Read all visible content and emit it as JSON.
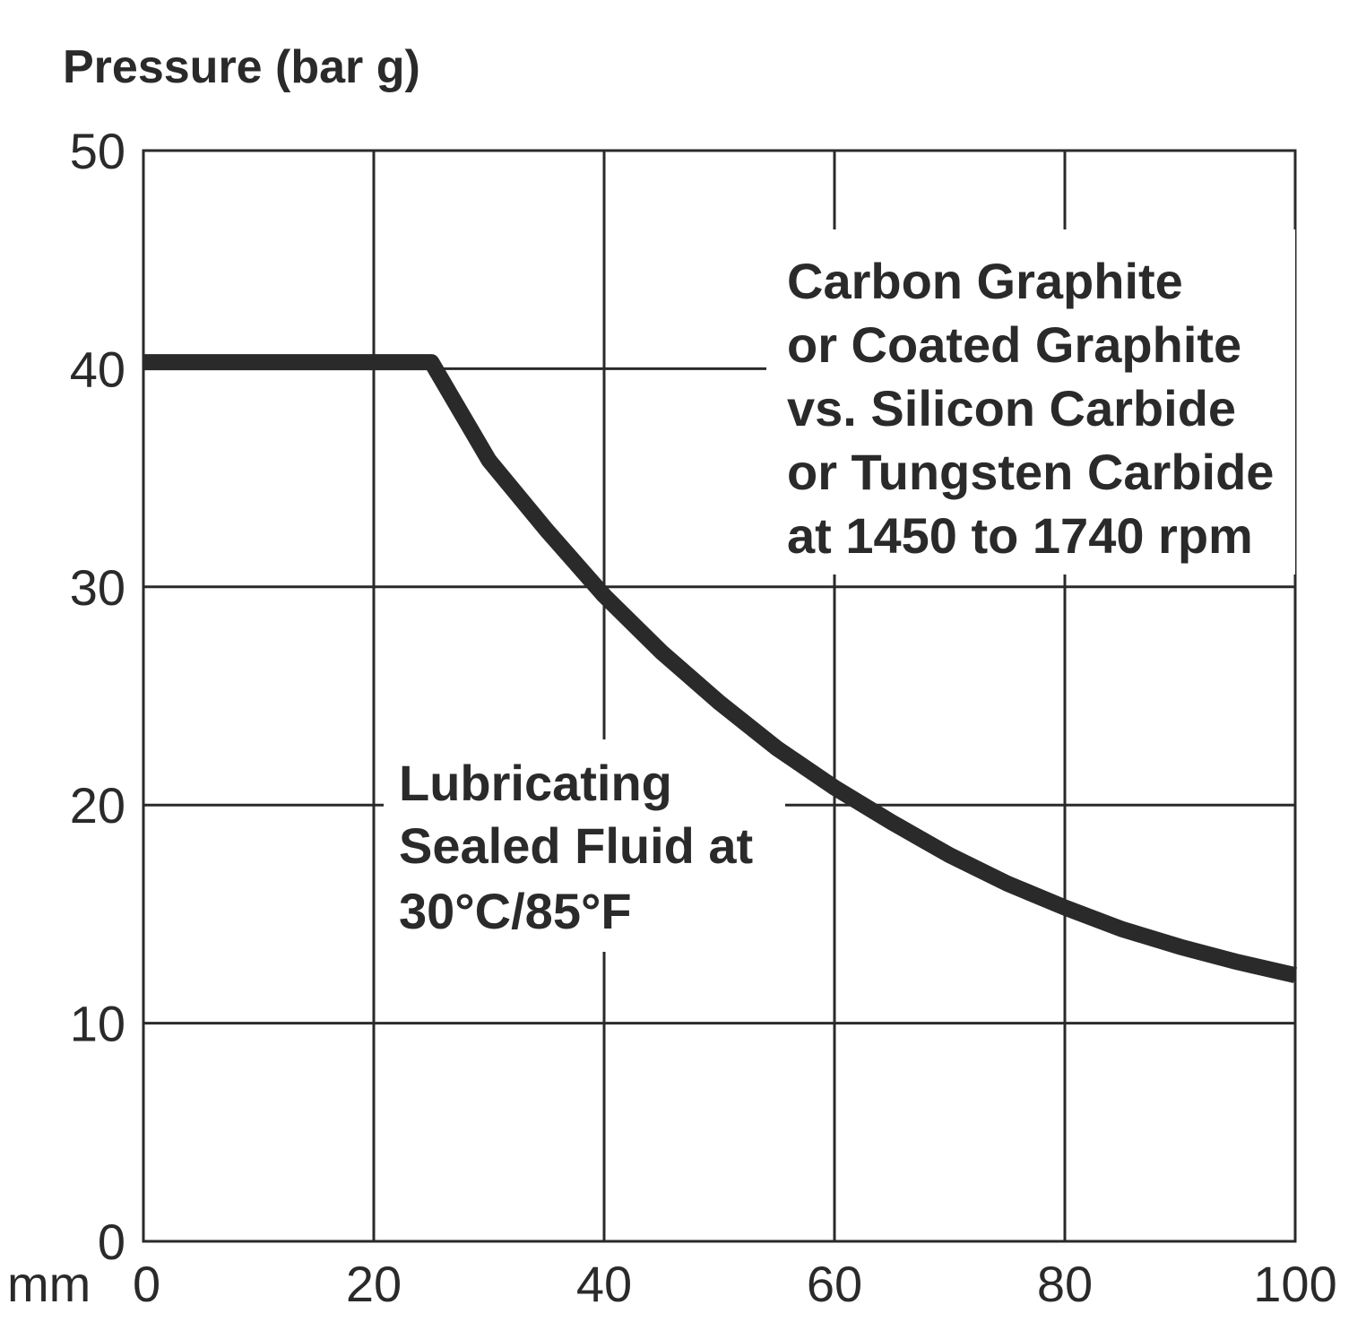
{
  "chart_data": {
    "type": "line",
    "title": "",
    "ylabel": "Pressure (bar g)",
    "xlabel": "mm",
    "xlim": [
      0,
      100
    ],
    "ylim": [
      0,
      50
    ],
    "x_ticks": [
      "0",
      "20",
      "40",
      "60",
      "80",
      "100"
    ],
    "y_ticks": [
      "0",
      "10",
      "20",
      "30",
      "40",
      "50"
    ],
    "grid": true,
    "series": [
      {
        "x": [
          0,
          25,
          30,
          35,
          40,
          45,
          50,
          55,
          60,
          65,
          70,
          75,
          80,
          85,
          90,
          95,
          100
        ],
        "y": [
          40.3,
          40.3,
          35.8,
          32.6,
          29.6,
          27.0,
          24.7,
          22.6,
          20.8,
          19.2,
          17.7,
          16.4,
          15.3,
          14.3,
          13.5,
          12.8,
          12.2
        ]
      }
    ],
    "annotations": [
      {
        "lines": [
          "Carbon Graphite",
          "or Coated Graphite",
          "vs. Silicon Carbide",
          "or Tungsten Carbide",
          "at 1450 to 1740 rpm"
        ]
      },
      {
        "lines": [
          "Lubricating",
          "Sealed Fluid at",
          "30°C/85°F"
        ]
      }
    ]
  }
}
